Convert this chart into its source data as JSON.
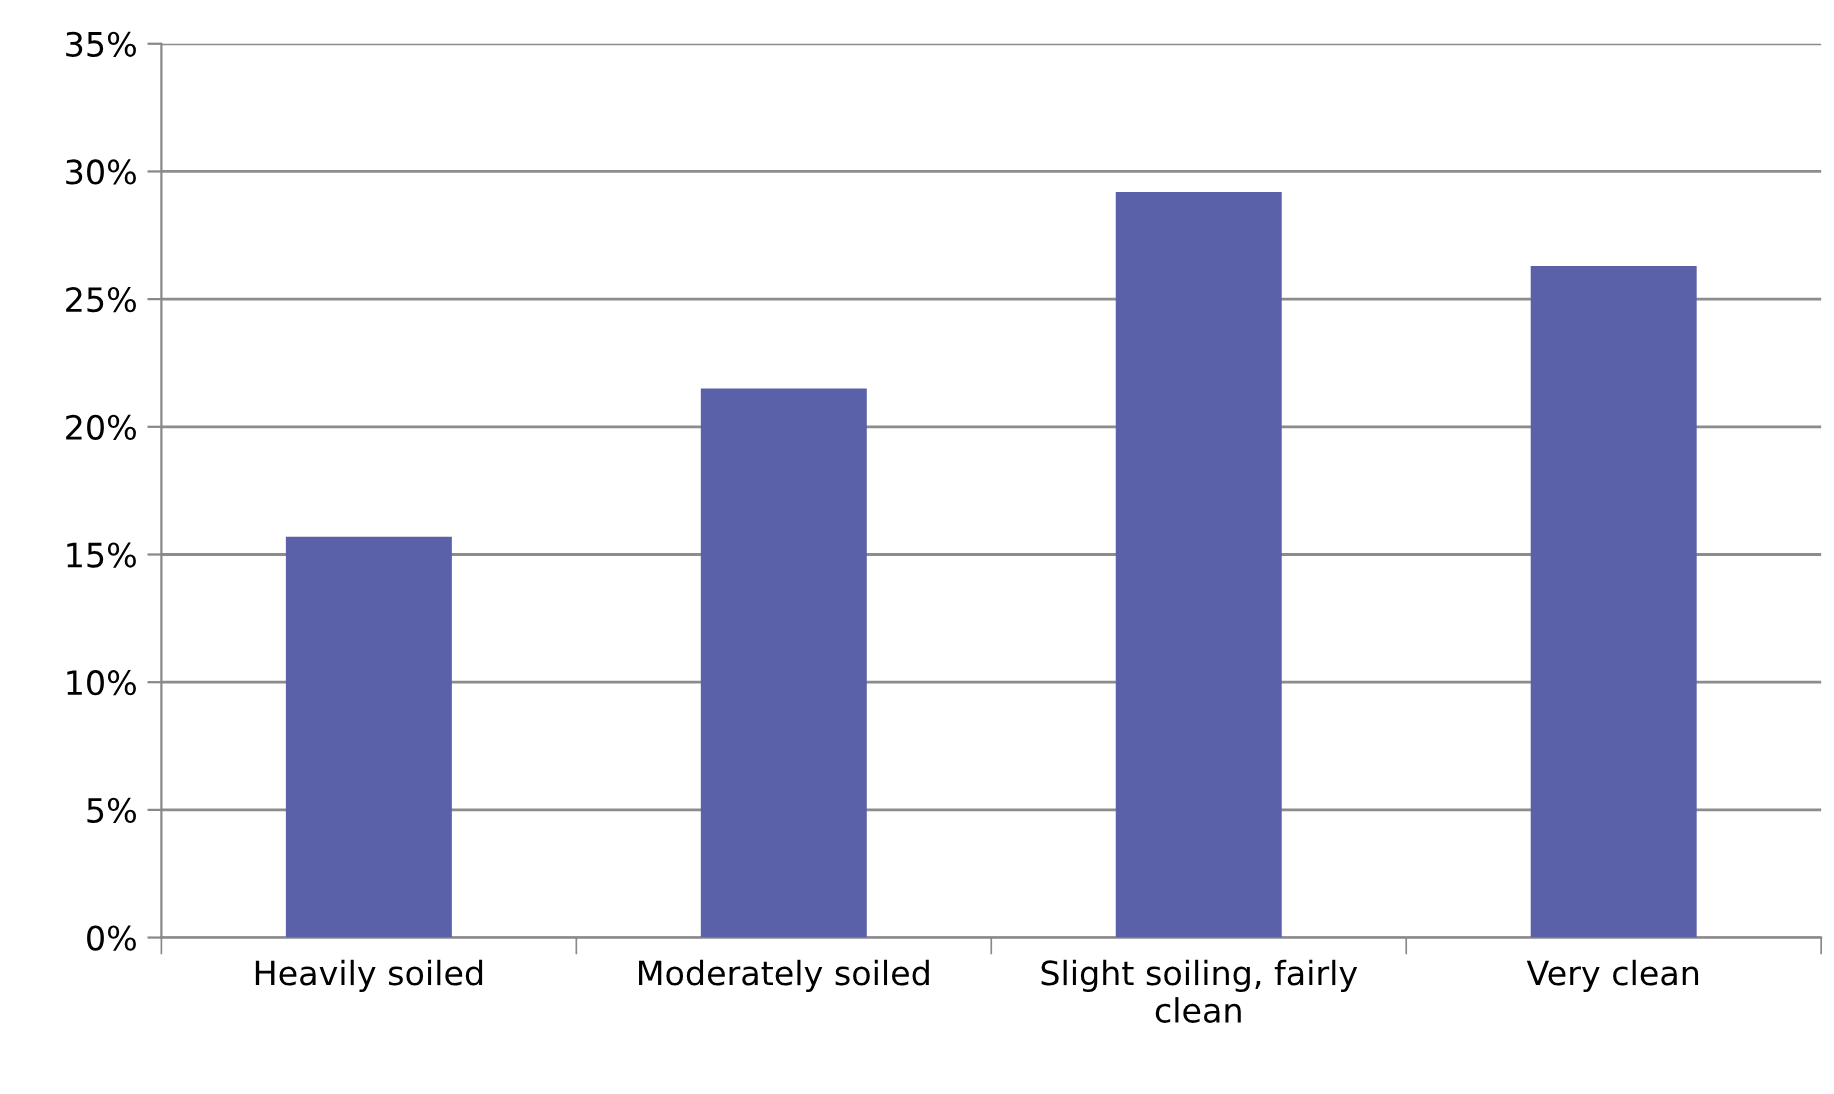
{
  "chart_data": {
    "type": "bar",
    "categories": [
      "Heavily soiled",
      "Moderately soiled",
      "Slight soiling, fairly\nclean",
      "Very clean"
    ],
    "values": [
      15.7,
      21.5,
      29.2,
      26.3
    ],
    "color": "#5b61a9",
    "ylim": [
      0,
      35
    ],
    "yticks": [
      {
        "value": 0,
        "label": "0%"
      },
      {
        "value": 5,
        "label": "5%"
      },
      {
        "value": 10,
        "label": "10%"
      },
      {
        "value": 15,
        "label": "15%"
      },
      {
        "value": 20,
        "label": "20%"
      },
      {
        "value": 25,
        "label": "25%"
      },
      {
        "value": 30,
        "label": "30%"
      },
      {
        "value": 35,
        "label": "35%"
      }
    ],
    "grid": "y",
    "legend": false
  }
}
